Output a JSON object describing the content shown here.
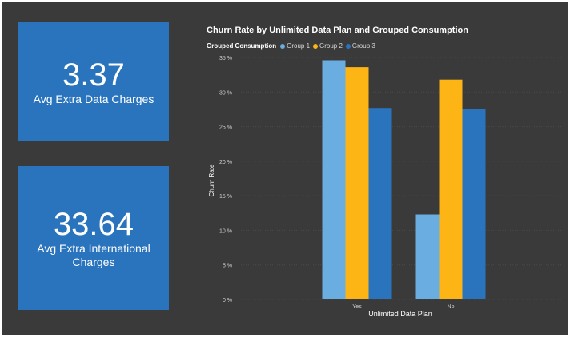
{
  "cards": [
    {
      "value": "3.37",
      "label": "Avg Extra Data Charges"
    },
    {
      "value": "33.64",
      "label": "Avg Extra International Charges"
    }
  ],
  "chart_data": {
    "type": "bar",
    "title": "Churn Rate by Unlimited Data Plan and Grouped Consumption",
    "legend_title": "Grouped Consumption",
    "legend_position": "top-left",
    "xlabel": "Unlimited Data Plan",
    "ylabel": "Churn Rate",
    "categories": [
      "Yes",
      "No"
    ],
    "series": [
      {
        "name": "Group 1",
        "values": [
          34.6,
          12.3
        ],
        "color": "#6aade0"
      },
      {
        "name": "Group 2",
        "values": [
          33.6,
          31.8
        ],
        "color": "#fdb415"
      },
      {
        "name": "Group 3",
        "values": [
          27.7,
          27.6
        ],
        "color": "#2a74bd"
      }
    ],
    "ylim": [
      0,
      35
    ],
    "yticks": [
      0,
      5,
      10,
      15,
      20,
      25,
      30,
      35
    ],
    "ytick_labels": [
      "0 %",
      "5 %",
      "10 %",
      "15 %",
      "20 %",
      "25 %",
      "30 %",
      "35 %"
    ],
    "grid": true
  }
}
